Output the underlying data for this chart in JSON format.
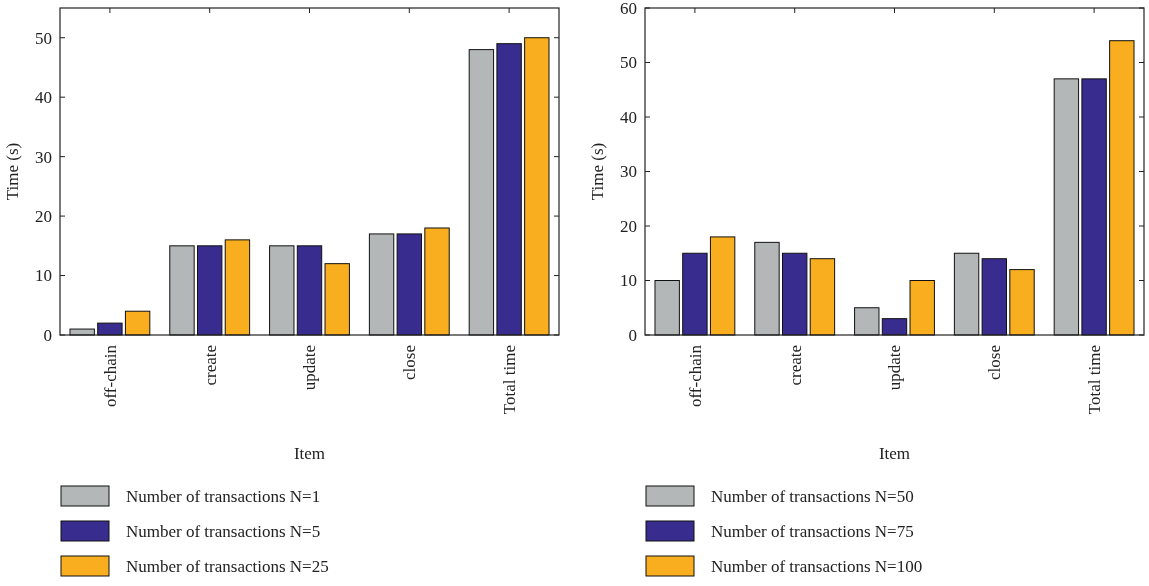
{
  "chart_data": [
    {
      "type": "bar",
      "xlabel": "Item",
      "ylabel": "Time (s)",
      "categories": [
        "off-chain",
        "create",
        "update",
        "close",
        "Total time"
      ],
      "series": [
        {
          "name": "Number of transactions N=1",
          "color": "#b4b7b8",
          "values": [
            1,
            15,
            15,
            17,
            48
          ]
        },
        {
          "name": "Number of transactions N=5",
          "color": "#382c8e",
          "values": [
            2,
            15,
            15,
            17,
            49
          ]
        },
        {
          "name": "Number of transactions N=25",
          "color": "#f9ae1f",
          "values": [
            4,
            16,
            12,
            18,
            50
          ]
        }
      ],
      "ylim": [
        0,
        55
      ],
      "yticks": [
        0,
        10,
        20,
        30,
        40,
        50
      ],
      "legend": "bottom",
      "grid": false
    },
    {
      "type": "bar",
      "xlabel": "Item",
      "ylabel": "Time (s)",
      "categories": [
        "off-chain",
        "create",
        "update",
        "close",
        "Total time"
      ],
      "series": [
        {
          "name": "Number of transactions N=50",
          "color": "#b4b7b8",
          "values": [
            10,
            17,
            5,
            15,
            47
          ]
        },
        {
          "name": "Number of transactions N=75",
          "color": "#382c8e",
          "values": [
            15,
            15,
            3,
            14,
            47
          ]
        },
        {
          "name": "Number of transactions N=100",
          "color": "#f9ae1f",
          "values": [
            18,
            14,
            10,
            12,
            54
          ]
        }
      ],
      "ylim": [
        0,
        60
      ],
      "yticks": [
        0,
        10,
        20,
        30,
        40,
        50,
        60
      ],
      "legend": "bottom",
      "grid": false
    }
  ]
}
